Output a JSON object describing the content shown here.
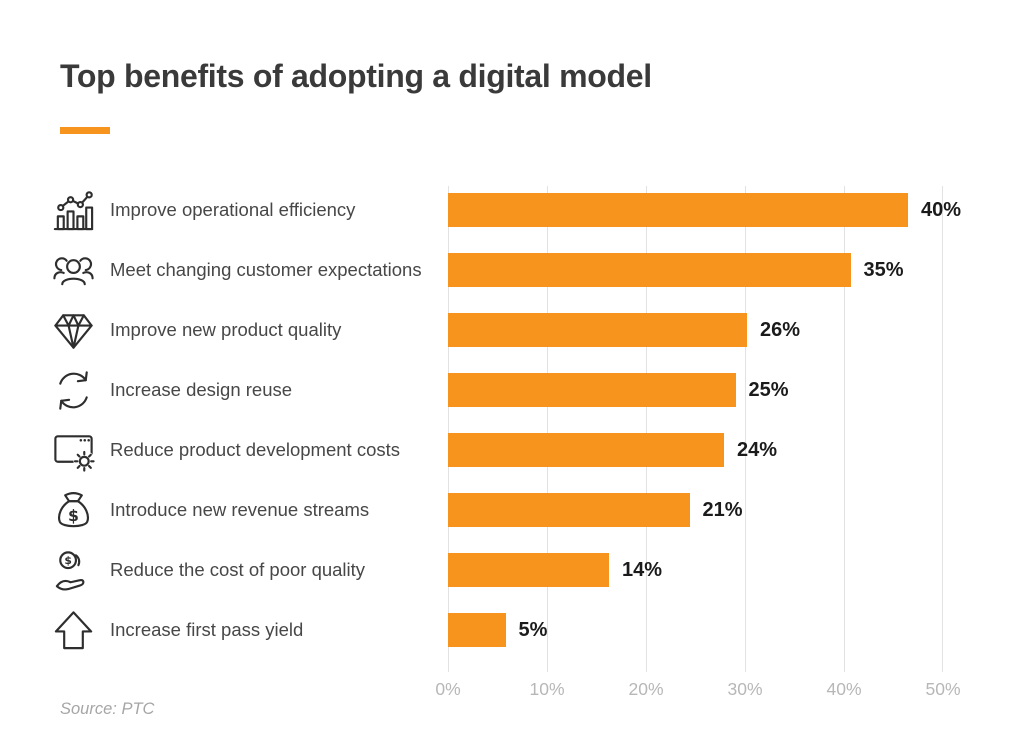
{
  "page": {
    "title": "Top benefits of adopting a digital model",
    "source": "Source: PTC"
  },
  "colors": {
    "accent": "#F7941E",
    "value_label": "#1b1b1b",
    "axis_label": "#b7b7b7",
    "gridline": "#e2e2e2"
  },
  "chart_data": {
    "type": "bar",
    "orientation": "horizontal",
    "title": "Top benefits of adopting a digital model",
    "categories": [
      "Improve operational efficiency",
      "Meet changing customer expectations",
      "Improve new product quality",
      "Increase design reuse",
      "Reduce product development costs",
      "Introduce new revenue streams",
      "Reduce the cost of poor quality",
      "Increase first pass yield"
    ],
    "values": [
      40,
      35,
      26,
      25,
      24,
      21,
      14,
      5
    ],
    "value_labels": [
      "40%",
      "35%",
      "26%",
      "25%",
      "24%",
      "21%",
      "14%",
      "5%"
    ],
    "unit": "%",
    "xlim": [
      0,
      50
    ],
    "x_ticks": [
      "0%",
      "10%",
      "20%",
      "30%",
      "40%",
      "50%"
    ],
    "grid": true,
    "legend": false,
    "bar_color": "#F7941E",
    "icons": [
      "growth-chart-icon",
      "customers-group-icon",
      "diamond-icon",
      "reuse-arrows-icon",
      "window-gear-icon",
      "money-bag-icon",
      "coin-in-hand-icon",
      "arrow-up-icon"
    ],
    "source": "Source: PTC"
  }
}
